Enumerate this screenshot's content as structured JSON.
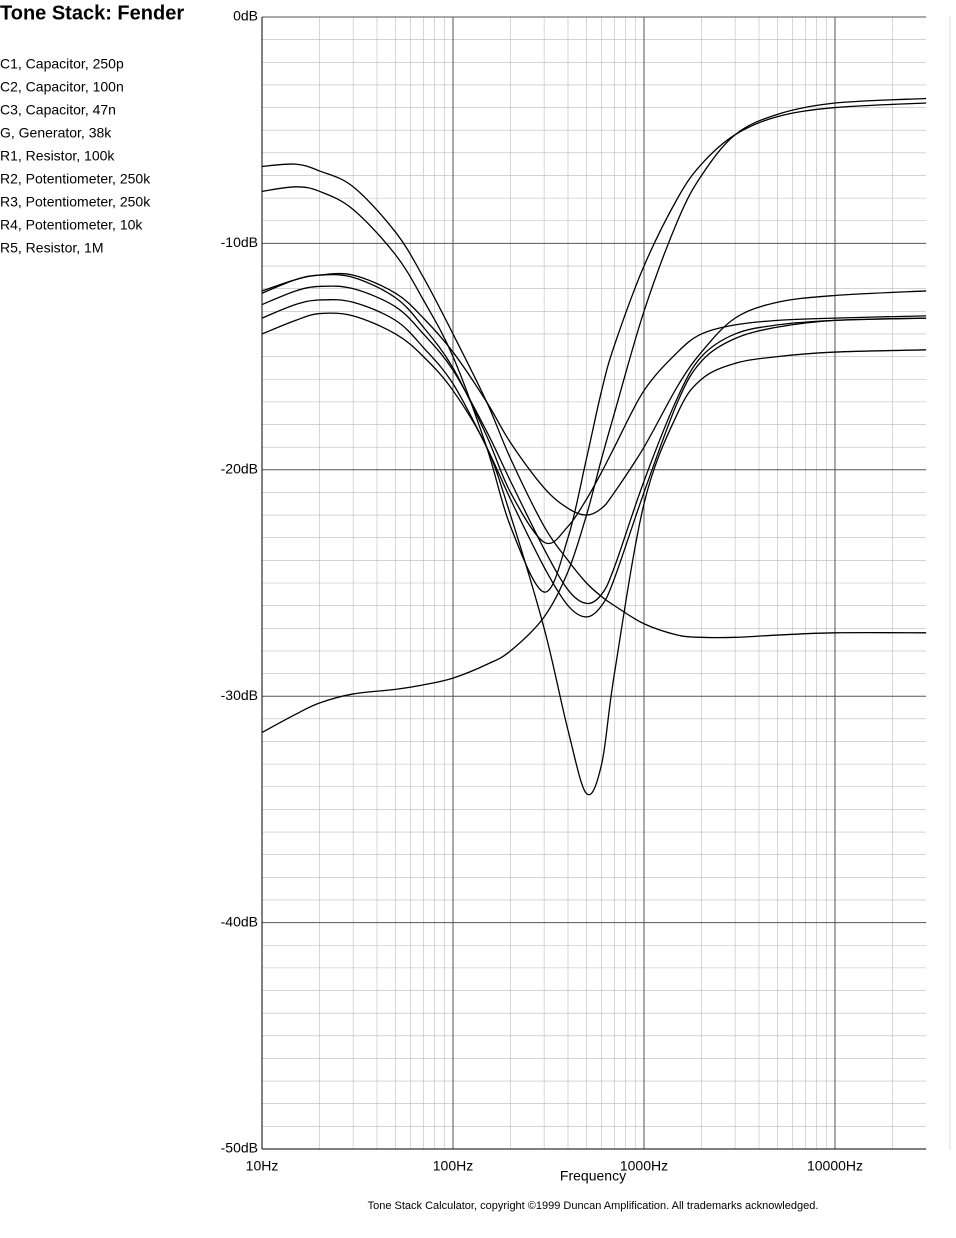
{
  "chart_data": {
    "type": "line",
    "title": "Tone Stack: Fender",
    "components": [
      "C1, Capacitor, 250p",
      "C2, Capacitor, 100n",
      "C3, Capacitor, 47n",
      "G, Generator, 38k",
      "R1, Resistor, 100k",
      "R2, Potentiometer, 250k",
      "R3, Potentiometer, 250k",
      "R4, Potentiometer, 10k",
      "R5, Resistor, 1M"
    ],
    "x_label": "Frequency",
    "footer": "Tone Stack Calculator, copyright ©1999 Duncan Amplification.  All trademarks acknowledged.",
    "x_log": true,
    "grid": true,
    "minor_grid": true,
    "xlim": [
      10,
      30000
    ],
    "ylim": [
      -50,
      0
    ],
    "xticks": [
      {
        "value": 10,
        "label": "10Hz"
      },
      {
        "value": 100,
        "label": "100Hz"
      },
      {
        "value": 1000,
        "label": "1000Hz"
      },
      {
        "value": 10000,
        "label": "10000Hz"
      }
    ],
    "yticks": [
      {
        "value": 0,
        "label": "0dB"
      },
      {
        "value": -10,
        "label": "-10dB"
      },
      {
        "value": -20,
        "label": "-20dB"
      },
      {
        "value": -30,
        "label": "-30dB"
      },
      {
        "value": -40,
        "label": "-40dB"
      },
      {
        "value": -50,
        "label": "-50dB"
      }
    ],
    "x": [
      10,
      15,
      20,
      30,
      50,
      70,
      100,
      150,
      200,
      300,
      400,
      500,
      600,
      700,
      1000,
      1500,
      2000,
      3000,
      5000,
      10000,
      30000
    ],
    "series": [
      {
        "color": "#000000",
        "values": [
          -31.6,
          -30.8,
          -30.3,
          -29.9,
          -29.7,
          -29.5,
          -29.2,
          -28.6,
          -28,
          -26.5,
          -24.5,
          -22,
          -19.5,
          -17.5,
          -13,
          -9,
          -7,
          -5.2,
          -4.3,
          -3.8,
          -3.6
        ]
      },
      {
        "color": "#000000",
        "values": [
          -14,
          -13.4,
          -13.1,
          -13.2,
          -14,
          -15,
          -16.5,
          -19,
          -22,
          -27,
          -31.5,
          -34.3,
          -33,
          -29,
          -21.5,
          -17.5,
          -16,
          -15.3,
          -15,
          -14.8,
          -14.7
        ]
      },
      {
        "color": "#000000",
        "values": [
          -7.7,
          -7.5,
          -7.7,
          -8.5,
          -10.5,
          -12.5,
          -15,
          -19,
          -22.5,
          -25.4,
          -23,
          -19.5,
          -16.5,
          -14.5,
          -11,
          -8,
          -6.5,
          -5.2,
          -4.4,
          -4,
          -3.8
        ]
      },
      {
        "color": "#000000",
        "values": [
          -6.6,
          -6.5,
          -6.8,
          -7.5,
          -9.5,
          -11.5,
          -14,
          -17,
          -19.5,
          -22.5,
          -24,
          -25,
          -25.6,
          -26,
          -26.8,
          -27.3,
          -27.4,
          -27.4,
          -27.3,
          -27.2,
          -27.2
        ]
      },
      {
        "color": "#000000",
        "values": [
          -12.1,
          -11.6,
          -11.4,
          -11.4,
          -12.2,
          -13.3,
          -14.8,
          -17,
          -18.8,
          -20.8,
          -21.7,
          -22,
          -21.7,
          -21,
          -19,
          -16.3,
          -14.8,
          -13.3,
          -12.6,
          -12.3,
          -12.1
        ]
      },
      {
        "color": "#000000",
        "values": [
          -12.2,
          -11.6,
          -11.4,
          -11.5,
          -12.4,
          -13.7,
          -15.5,
          -18.5,
          -21,
          -23.2,
          -22.5,
          -21.3,
          -20.1,
          -19,
          -16.5,
          -14.8,
          -14,
          -13.6,
          -13.4,
          -13.3,
          -13.2
        ]
      },
      {
        "color": "#000000",
        "values": [
          -12.7,
          -12.1,
          -11.9,
          -12,
          -12.8,
          -14,
          -15.6,
          -18.3,
          -20.5,
          -23.5,
          -25.3,
          -25.9,
          -25.5,
          -24.3,
          -20.5,
          -16.8,
          -15,
          -14,
          -13.6,
          -13.4,
          -13.3
        ]
      },
      {
        "color": "#000000",
        "values": [
          -13.3,
          -12.7,
          -12.5,
          -12.6,
          -13.4,
          -14.6,
          -16.2,
          -19,
          -21.3,
          -24.3,
          -26,
          -26.5,
          -26,
          -24.8,
          -21,
          -17,
          -15.2,
          -14.2,
          -13.7,
          -13.4,
          -13.3
        ]
      }
    ]
  }
}
